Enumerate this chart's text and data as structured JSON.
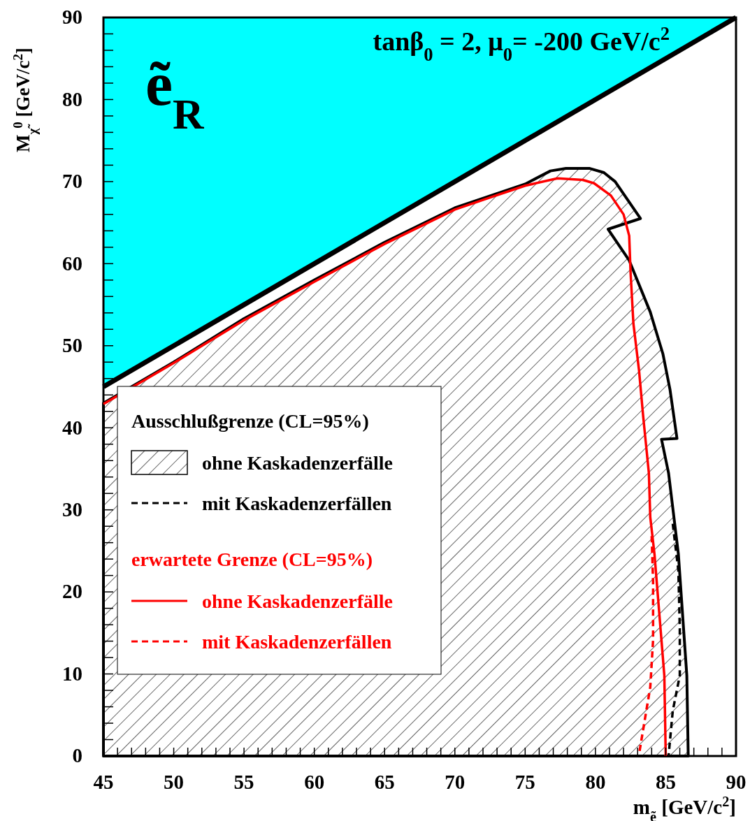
{
  "chart_data": {
    "type": "line",
    "xlabel": "m$_{ẽ}$ [GeV/c$^{2}$]",
    "ylabel": "M$_{χ̃}$$^{0}$ [GeV/c$^{2}$]",
    "legend_title": "Ausschlußgrenze (CL=95%)",
    "annotations": [
      "tanβ$_{0}$ = 2, μ$_{0}$= -200 GeV/c$^{2}$",
      "ẽ$_{R}$",
      "erwartete Grenze (CL=95%)"
    ],
    "xlim": [
      45,
      90
    ],
    "ylim": [
      0,
      90
    ],
    "xticks": [
      45,
      {
        "value": 46,
        "label": null
      },
      {
        "value": 47,
        "label": null
      },
      {
        "value": 48,
        "label": null
      },
      {
        "value": 49,
        "label": null
      },
      50,
      {
        "value": 51,
        "label": null
      },
      {
        "value": 52,
        "label": null
      },
      {
        "value": 53,
        "label": null
      },
      {
        "value": 54,
        "label": null
      },
      55,
      {
        "value": 56,
        "label": null
      },
      {
        "value": 57,
        "label": null
      },
      {
        "value": 58,
        "label": null
      },
      {
        "value": 59,
        "label": null
      },
      60,
      {
        "value": 61,
        "label": null
      },
      {
        "value": 62,
        "label": null
      },
      {
        "value": 63,
        "label": null
      },
      {
        "value": 64,
        "label": null
      },
      65,
      {
        "value": 66,
        "label": null
      },
      {
        "value": 67,
        "label": null
      },
      {
        "value": 68,
        "label": null
      },
      {
        "value": 69,
        "label": null
      },
      70,
      {
        "value": 71,
        "label": null
      },
      {
        "value": 72,
        "label": null
      },
      {
        "value": 73,
        "label": null
      },
      {
        "value": 74,
        "label": null
      },
      75,
      {
        "value": 76,
        "label": null
      },
      {
        "value": 77,
        "label": null
      },
      {
        "value": 78,
        "label": null
      },
      {
        "value": 79,
        "label": null
      },
      80,
      {
        "value": 81,
        "label": null
      },
      {
        "value": 82,
        "label": null
      },
      {
        "value": 83,
        "label": null
      },
      {
        "value": 84,
        "label": null
      },
      85,
      {
        "value": 86,
        "label": null
      },
      {
        "value": 87,
        "label": null
      },
      {
        "value": 88,
        "label": null
      },
      {
        "value": 89,
        "label": null
      },
      90
    ],
    "yticks": [
      0,
      {
        "value": 2,
        "label": null
      },
      {
        "value": 4,
        "label": null
      },
      {
        "value": 6,
        "label": null
      },
      {
        "value": 8,
        "label": null
      },
      10,
      {
        "value": 12,
        "label": null
      },
      {
        "value": 14,
        "label": null
      },
      {
        "value": 16,
        "label": null
      },
      {
        "value": 18,
        "label": null
      },
      20,
      {
        "value": 22,
        "label": null
      },
      {
        "value": 24,
        "label": null
      },
      {
        "value": 26,
        "label": null
      },
      {
        "value": 28,
        "label": null
      },
      30,
      {
        "value": 32,
        "label": null
      },
      {
        "value": 34,
        "label": null
      },
      {
        "value": 36,
        "label": null
      },
      {
        "value": 38,
        "label": null
      },
      40,
      {
        "value": 42,
        "label": null
      },
      {
        "value": 44,
        "label": null
      },
      {
        "value": 46,
        "label": null
      },
      {
        "value": 48,
        "label": null
      },
      50,
      {
        "value": 52,
        "label": null
      },
      {
        "value": 54,
        "label": null
      },
      {
        "value": 56,
        "label": null
      },
      {
        "value": 58,
        "label": null
      },
      60,
      {
        "value": 62,
        "label": null
      },
      {
        "value": 64,
        "label": null
      },
      {
        "value": 66,
        "label": null
      },
      {
        "value": 68,
        "label": null
      },
      70,
      {
        "value": 72,
        "label": null
      },
      {
        "value": 74,
        "label": null
      },
      {
        "value": 76,
        "label": null
      },
      {
        "value": 78,
        "label": null
      },
      80,
      {
        "value": 82,
        "label": null
      },
      {
        "value": 84,
        "label": null
      },
      {
        "value": 86,
        "label": null
      },
      {
        "value": 88,
        "label": null
      },
      90
    ],
    "grid": false,
    "legend": "bottom left",
    "series": [
      {
        "type": "area",
        "name": "ohne Kaskadenzerfälle",
        "color": "#000000",
        "x": [
          45,
          50,
          55,
          60,
          65,
          70,
          75,
          76.8,
          77.9,
          79.6,
          80.6,
          81.4,
          83.2,
          80.9,
          82.4,
          83.9,
          84.8,
          85.3,
          85.8,
          84.7,
          85.2,
          85.9,
          86.5,
          86.6
        ],
        "values": [
          43,
          48,
          53.3,
          58,
          62.6,
          66.8,
          69.7,
          71.3,
          71.6,
          71.6,
          71.1,
          70,
          65.5,
          64.2,
          60.4,
          54.1,
          49,
          44.7,
          38.7,
          38.6,
          34.5,
          24.6,
          9.8,
          0
        ]
      },
      {
        "color": "#000000",
        "x": [
          45,
          90
        ],
        "values": [
          45,
          90
        ],
        "lower": [
          45,
          90
        ],
        "upper": [
          90,
          90
        ]
      },
      {
        "name": "mit Kaskadenzerfällen",
        "color": "#000000",
        "line_style": "dashed",
        "x": [
          85.5,
          85.9,
          86,
          86,
          85.5,
          85.2
        ],
        "values": [
          28.3,
          22.6,
          15.5,
          9.8,
          5.5,
          0
        ]
      },
      {
        "name": "ohne Kaskadenzerfälle",
        "color": "#ff0000",
        "x": [
          45,
          50,
          55,
          60,
          65,
          70,
          72.4,
          75,
          77.3,
          79.1,
          79.9,
          81.1,
          82,
          82.4,
          82.5,
          82.7,
          83.1,
          83.4,
          83.8,
          83.9,
          84.2,
          84.9,
          85
        ],
        "values": [
          42.9,
          47.9,
          53.1,
          57.8,
          62.4,
          66.6,
          68,
          69.5,
          70.4,
          70.2,
          69.8,
          68.3,
          66,
          63.4,
          58.9,
          52.7,
          47,
          41.3,
          34.5,
          29.1,
          24.6,
          9.8,
          0
        ]
      },
      {
        "name": "mit Kaskadenzerfällen",
        "color": "#ff0000",
        "line_style": "dashed",
        "x": [
          84,
          84.1,
          84.1,
          83.9,
          83.1
        ],
        "values": [
          26.8,
          21.2,
          14.1,
          8.4,
          0.2
        ]
      }
    ]
  }
}
